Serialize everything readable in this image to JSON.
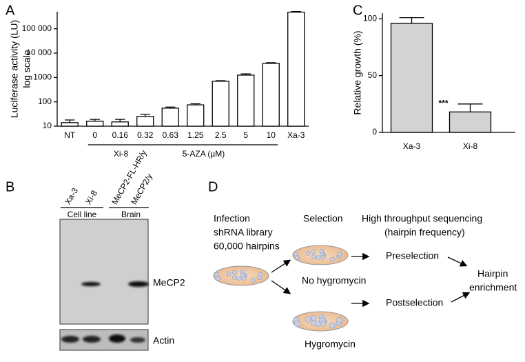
{
  "panel_labels": [
    "A",
    "B",
    "C",
    "D"
  ],
  "chart_data": [
    {
      "type": "bar",
      "log_scale": true,
      "grid": false,
      "color": "#ffffff",
      "edge_color": "#000000",
      "ylabel": "Luciferase activity (LU)",
      "ylabel2": "log scale",
      "categories": [
        "NT",
        "0",
        "0.16",
        "0.32",
        "0.63",
        "1.25",
        "2.5",
        "5",
        "10",
        "Xa-3"
      ],
      "values": [
        14,
        16,
        15,
        25,
        55,
        75,
        700,
        1250,
        3800,
        480000
      ],
      "errors": [
        4,
        3,
        4,
        6,
        6,
        8,
        40,
        150,
        250,
        30000
      ],
      "group_labels": [
        "Xi-8",
        "5-AZA (µM)"
      ],
      "ylim": [
        10,
        500000
      ],
      "yticks": [
        10,
        100,
        1000,
        {
          "value": 10000,
          "label": "10 000"
        },
        {
          "value": 100000,
          "label": "100 000"
        }
      ]
    },
    {
      "type": "bar",
      "log_scale": false,
      "grid": false,
      "color": "#d3d3d3",
      "edge_color": "#000000",
      "ylabel": "Relative growth (%)",
      "categories": [
        "Xa-3",
        "Xi-8"
      ],
      "values": [
        96,
        18
      ],
      "errors": [
        5,
        7
      ],
      "annotation": "***",
      "ylim": [
        0,
        105
      ],
      "yticks": [
        0,
        50,
        100
      ]
    }
  ],
  "blot": {
    "lanes": [
      "Xa-3",
      "Xi-8",
      "MeCP2-FL-HR/y",
      "MeCP2/y"
    ],
    "groups": [
      "Cell line",
      "Brain"
    ],
    "bands": [
      "MeCP2",
      "Actin"
    ]
  },
  "diagram": {
    "steps": [
      "Infection",
      "shRNA library",
      "60,000 hairpins"
    ],
    "selection": "Selection",
    "sequencing": [
      "High throughput sequencing",
      "(hairpin frequency)"
    ],
    "conditions": [
      "No hygromycin",
      "Hygromycin"
    ],
    "samples": [
      "Preselection",
      "Postselection"
    ],
    "result": [
      "Hairpin",
      "enrichment"
    ]
  }
}
